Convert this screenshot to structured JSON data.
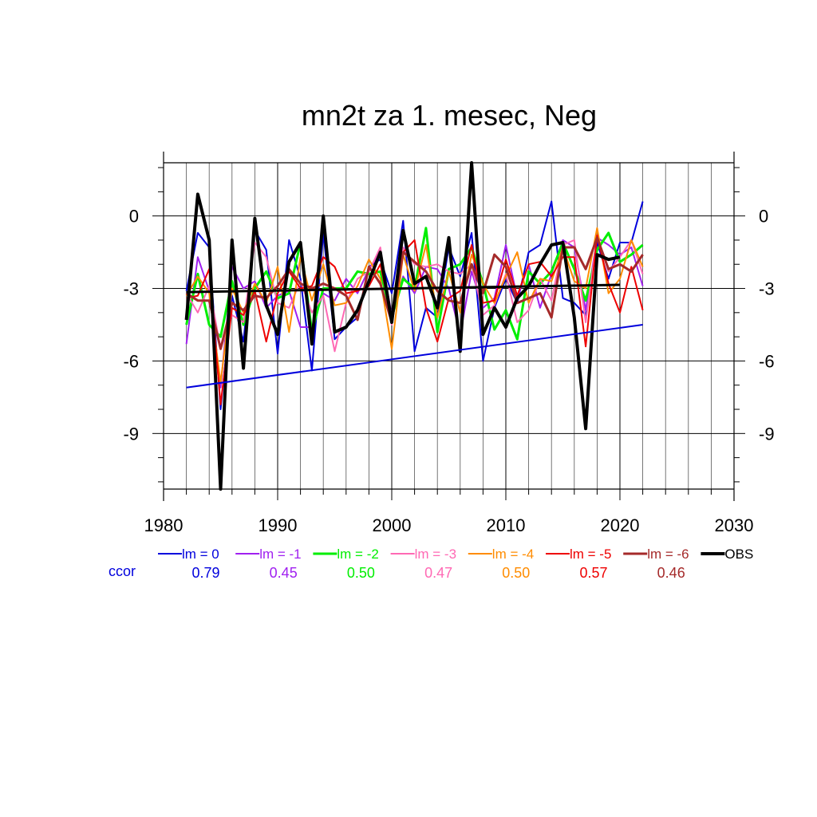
{
  "chart_data": {
    "type": "line",
    "title": "mn2t za 1. mesec, Neg",
    "xlim": [
      1980,
      2030
    ],
    "ylim": [
      -11.3,
      2.2
    ],
    "x_ticks": [
      "1980",
      "1990",
      "2000",
      "2010",
      "2020",
      "2030"
    ],
    "y_ticks": [
      "0",
      "-3",
      "-6",
      "-9"
    ],
    "x_tick_values": [
      1980,
      1990,
      2000,
      2010,
      2020,
      2030
    ],
    "y_tick_values": [
      0,
      -3,
      -6,
      -9
    ],
    "grid": true,
    "legend_position": "bottom",
    "ccor_label": "ccor",
    "x": [
      1982,
      1983,
      1984,
      1985,
      1986,
      1987,
      1988,
      1989,
      1990,
      1991,
      1992,
      1993,
      1994,
      1995,
      1996,
      1997,
      1998,
      1999,
      2000,
      2001,
      2002,
      2003,
      2004,
      2005,
      2006,
      2007,
      2008,
      2009,
      2010,
      2011,
      2012,
      2013,
      2014,
      2015,
      2016,
      2017,
      2018,
      2019,
      2020,
      2021,
      2022
    ],
    "series": [
      {
        "name": "lm = 0",
        "ccor": "0.79",
        "color": "#0000dd",
        "width": 2,
        "values": [
          -3.1,
          -0.7,
          -1.3,
          -8.0,
          -3.3,
          -5.2,
          -0.6,
          -1.4,
          -5.7,
          -1.0,
          -2.6,
          -6.4,
          -0.7,
          -5.1,
          -4.6,
          -4.2,
          -2.1,
          -1.8,
          -3.2,
          -0.2,
          -5.6,
          -3.8,
          -4.2,
          -1.3,
          -2.5,
          -0.7,
          -6.0,
          -3.8,
          -2.6,
          -3.6,
          -1.5,
          -1.2,
          0.6,
          -3.4,
          -3.6,
          -4.1,
          -1.1,
          -2.6,
          -1.1,
          -1.1,
          0.6
        ]
      },
      {
        "name": "lm = -1",
        "ccor": "0.45",
        "color": "#a020f0",
        "width": 2,
        "values": [
          -5.3,
          -1.7,
          -3.1,
          -7.1,
          -2.1,
          -3.0,
          -2.7,
          -3.8,
          -3.3,
          -3.1,
          -4.6,
          -4.6,
          -3.2,
          -3.5,
          -2.6,
          -3.2,
          -2.2,
          -1.5,
          -4.1,
          -2.5,
          -3.2,
          -2.1,
          -2.2,
          -3.0,
          -4.9,
          -2.3,
          -3.8,
          -3.4,
          -1.2,
          -3.4,
          -2.0,
          -3.8,
          -2.4,
          -1.0,
          -1.3,
          -3.9,
          -0.9,
          -1.2,
          -1.6,
          -1.3,
          -2.9
        ]
      },
      {
        "name": "lm = -2",
        "ccor": "0.50",
        "color": "#00ee00",
        "width": 3,
        "values": [
          -4.5,
          -2.4,
          -4.5,
          -5.0,
          -2.7,
          -4.5,
          -3.0,
          -2.3,
          -3.4,
          -3.2,
          -1.1,
          -4.8,
          -3.0,
          -3.0,
          -3.0,
          -2.3,
          -2.4,
          -2.3,
          -4.2,
          -2.6,
          -3.0,
          -0.5,
          -4.8,
          -2.2,
          -2.0,
          -1.3,
          -2.8,
          -4.7,
          -3.9,
          -5.1,
          -2.3,
          -2.8,
          -2.3,
          -1.1,
          -2.2,
          -3.5,
          -1.4,
          -0.7,
          -1.9,
          -1.6,
          -1.2
        ]
      },
      {
        "name": "lm = -3",
        "ccor": "0.47",
        "color": "#ff69b4",
        "width": 2,
        "values": [
          -3.2,
          -4.0,
          -2.9,
          -5.5,
          -4.1,
          -4.4,
          -1.1,
          -1.7,
          -3.6,
          -3.8,
          -2.7,
          -4.0,
          -3.3,
          -5.6,
          -3.6,
          -2.6,
          -2.3,
          -1.3,
          -4.5,
          -1.3,
          -2.0,
          -2.1,
          -2.0,
          -2.3,
          -2.4,
          -2.0,
          -4.1,
          -3.7,
          -2.4,
          -4.4,
          -3.9,
          -2.6,
          -3.5,
          -1.2,
          -1.0,
          -4.4,
          -0.8,
          -2.3,
          -1.7,
          -1.0,
          -2.4
        ]
      },
      {
        "name": "lm = -4",
        "ccor": "0.50",
        "color": "#ff8c00",
        "width": 2,
        "values": [
          -3.3,
          -2.5,
          -3.2,
          -6.9,
          -3.0,
          -4.0,
          -2.8,
          -3.6,
          -2.1,
          -4.8,
          -1.7,
          -3.5,
          -2.0,
          -3.7,
          -3.6,
          -2.9,
          -1.8,
          -2.6,
          -5.5,
          -1.6,
          -3.1,
          -1.2,
          -4.2,
          -2.3,
          -4.0,
          -1.6,
          -2.8,
          -3.6,
          -2.5,
          -1.5,
          -3.6,
          -2.6,
          -2.7,
          -1.3,
          -2.7,
          -3.0,
          -0.5,
          -3.2,
          -2.6,
          -1.0,
          -2.1
        ]
      },
      {
        "name": "lm = -5",
        "ccor": "0.57",
        "color": "#ee0000",
        "width": 2,
        "values": [
          -3.4,
          -3.3,
          -2.2,
          -7.8,
          -3.8,
          -4.1,
          -3.1,
          -5.2,
          -3.2,
          -2.3,
          -3.0,
          -2.9,
          -1.7,
          -2.1,
          -3.2,
          -3.1,
          -2.9,
          -2.0,
          -4.3,
          -1.5,
          -1.0,
          -3.8,
          -5.2,
          -3.4,
          -3.1,
          -1.2,
          -3.6,
          -3.5,
          -1.8,
          -3.3,
          -2.0,
          -1.9,
          -2.5,
          -1.7,
          -1.7,
          -5.4,
          -0.8,
          -2.8,
          -4.0,
          -2.1,
          -3.9
        ]
      },
      {
        "name": "lm = -6",
        "ccor": "0.46",
        "color": "#a52a2a",
        "width": 3,
        "values": [
          -3.2,
          -3.5,
          -3.5,
          -5.5,
          -3.6,
          -3.9,
          -3.3,
          -3.4,
          -2.9,
          -2.2,
          -2.8,
          -3.0,
          -2.8,
          -3.0,
          -3.3,
          -4.3,
          -2.1,
          -2.8,
          -4.4,
          -1.5,
          -1.9,
          -2.3,
          -3.1,
          -3.5,
          -3.6,
          -2.0,
          -3.2,
          -1.6,
          -2.1,
          -3.6,
          -3.4,
          -3.2,
          -4.2,
          -1.3,
          -1.3,
          -2.2,
          -0.9,
          -2.2,
          -2.0,
          -2.3,
          -1.6
        ]
      },
      {
        "name": "OBS",
        "ccor": "",
        "color": "#000000",
        "width": 4,
        "values": [
          -4.3,
          0.9,
          -1.0,
          -11.3,
          -1.0,
          -6.3,
          -0.1,
          -3.7,
          -4.9,
          -1.9,
          -1.1,
          -5.3,
          0.0,
          -4.8,
          -4.6,
          -3.9,
          -2.7,
          -1.5,
          -4.4,
          -0.6,
          -2.8,
          -2.5,
          -3.8,
          -0.9,
          -5.6,
          2.2,
          -4.9,
          -3.8,
          -4.6,
          -3.4,
          -2.9,
          -2.0,
          -1.2,
          -1.1,
          -4.2,
          -8.8,
          -1.6,
          -1.8,
          -1.7,
          null,
          null
        ]
      }
    ],
    "trend_lines": [
      {
        "series": "lm = 0",
        "color": "#0000dd",
        "width": 2,
        "x": [
          1982,
          2022
        ],
        "y": [
          -7.1,
          -4.5
        ]
      },
      {
        "series": "OBS",
        "color": "#000000",
        "width": 3,
        "x": [
          1982,
          2020
        ],
        "y": [
          -3.15,
          -2.85
        ]
      }
    ]
  }
}
